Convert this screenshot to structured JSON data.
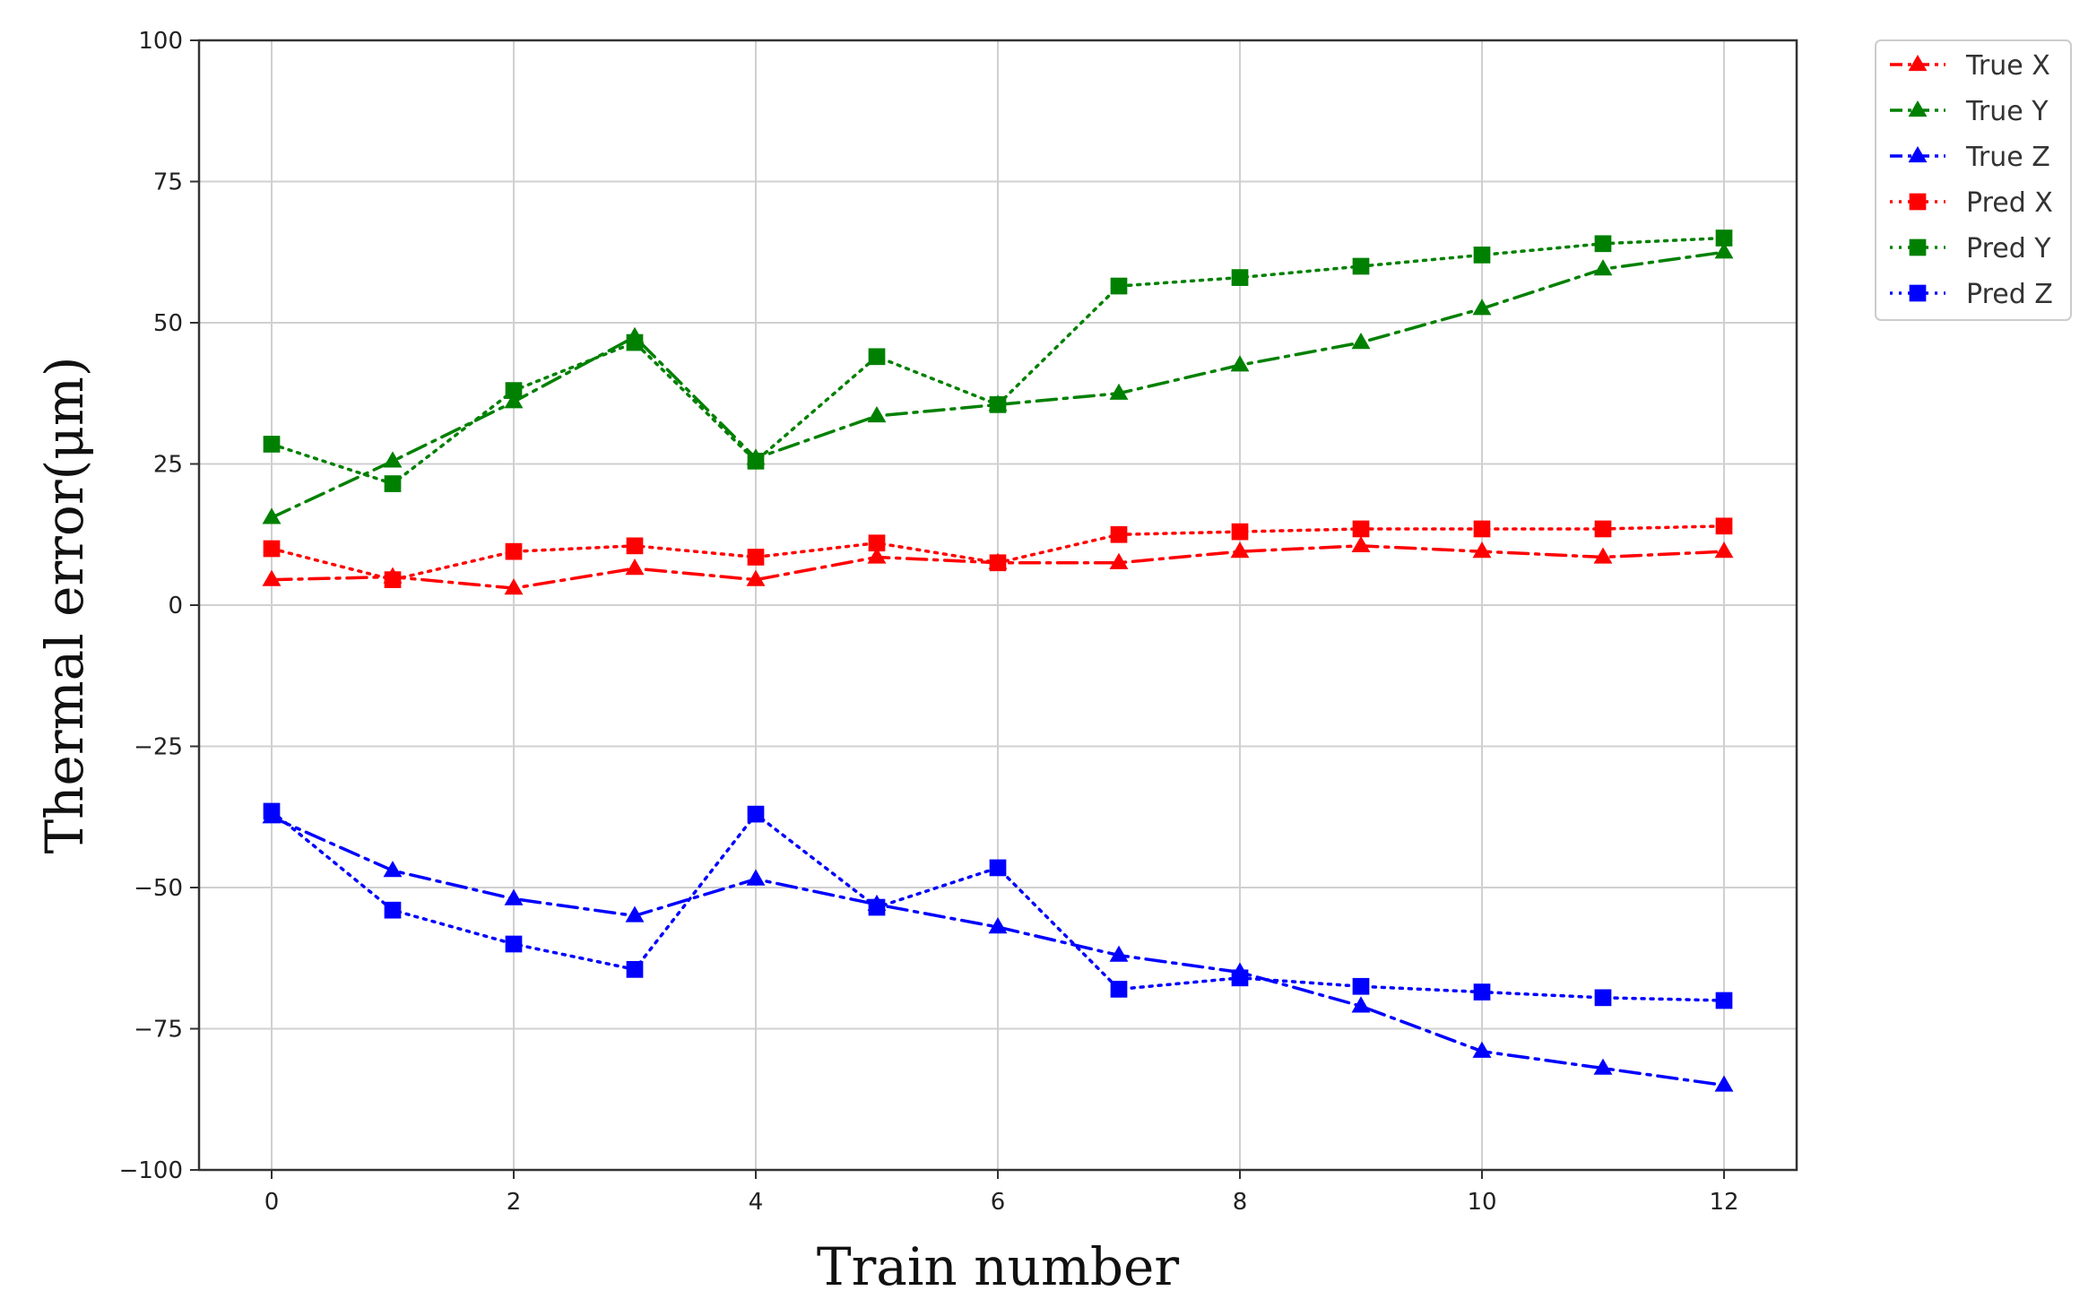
{
  "chart_data": {
    "type": "line",
    "title": "",
    "xlabel": "Train number",
    "ylabel": "Thermal error(μm)",
    "xlim": [
      -0.6,
      12.6
    ],
    "ylim": [
      -100,
      100
    ],
    "xticks": [
      0,
      2,
      4,
      6,
      8,
      10,
      12
    ],
    "yticks": [
      -100,
      -75,
      -50,
      -25,
      0,
      25,
      50,
      75,
      100
    ],
    "ytick_labels": [
      "−100",
      "−75",
      "−50",
      "−25",
      "0",
      "25",
      "50",
      "75",
      "100"
    ],
    "grid": true,
    "legend": "outside-top-right",
    "x": [
      0,
      1,
      2,
      3,
      4,
      5,
      6,
      7,
      8,
      9,
      10,
      11,
      12
    ],
    "series": [
      {
        "name": "True X",
        "color": "#ff0000",
        "marker": "triangle",
        "line": "dashdot",
        "values": [
          4.5,
          5,
          3,
          6.5,
          4.5,
          8.5,
          7.5,
          7.5,
          9.5,
          10.5,
          9.5,
          8.5,
          9.5
        ]
      },
      {
        "name": "True Y",
        "color": "#008000",
        "marker": "triangle",
        "line": "dashdot",
        "values": [
          15.5,
          25.5,
          36,
          47.5,
          26,
          33.5,
          35.5,
          37.5,
          42.5,
          46.5,
          52.5,
          59.5,
          62.5
        ]
      },
      {
        "name": "True Z",
        "color": "#0000ff",
        "marker": "triangle",
        "line": "dashdot",
        "values": [
          -37.5,
          -47,
          -52,
          -55,
          -48.5,
          -53,
          -57,
          -62,
          -65,
          -71,
          -79,
          -82,
          -85
        ]
      },
      {
        "name": "Pred X",
        "color": "#ff0000",
        "marker": "square",
        "line": "dotted",
        "values": [
          10,
          4.5,
          9.5,
          10.5,
          8.5,
          11,
          7.5,
          12.5,
          13,
          13.5,
          13.5,
          13.5,
          14
        ]
      },
      {
        "name": "Pred Y",
        "color": "#008000",
        "marker": "square",
        "line": "dotted",
        "values": [
          28.5,
          21.5,
          38,
          46.5,
          25.5,
          44,
          35.5,
          56.5,
          58,
          60,
          62,
          64,
          65
        ]
      },
      {
        "name": "Pred Z",
        "color": "#0000ff",
        "marker": "square",
        "line": "dotted",
        "values": [
          -36.5,
          -54,
          -60,
          -64.5,
          -37,
          -53.5,
          -46.5,
          -68,
          -66,
          -67.5,
          -68.5,
          -69.5,
          -70
        ]
      }
    ]
  }
}
